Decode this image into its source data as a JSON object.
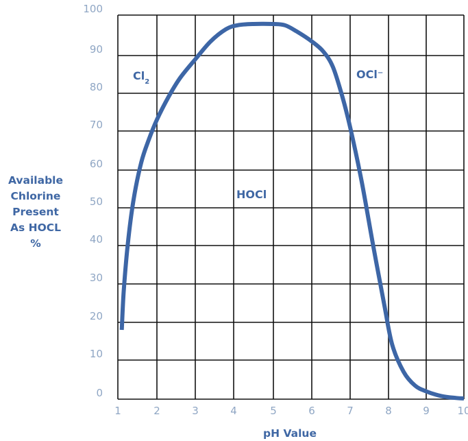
{
  "chart_data": {
    "type": "line",
    "title": "",
    "xlabel": "pH Value",
    "ylabel_lines": [
      "Available",
      "Chlorine",
      "Present",
      "As HOCL",
      "%"
    ],
    "xlim": [
      1,
      10
    ],
    "ylim": [
      0,
      100
    ],
    "x_ticks": [
      "1",
      "2",
      "3",
      "4",
      "5",
      "6",
      "7",
      "8",
      "9",
      "10"
    ],
    "y_ticks": [
      "0",
      "10",
      "20",
      "30",
      "40",
      "50",
      "60",
      "70",
      "80",
      "90",
      "100"
    ],
    "grid": true,
    "series": [
      {
        "color": "#3d66a6",
        "points": [
          [
            1.1,
            18
          ],
          [
            1.15,
            28
          ],
          [
            1.25,
            40
          ],
          [
            1.4,
            52
          ],
          [
            1.6,
            62
          ],
          [
            1.8,
            68
          ],
          [
            2.0,
            73
          ],
          [
            2.3,
            79
          ],
          [
            2.6,
            84
          ],
          [
            3.0,
            89
          ],
          [
            3.4,
            93.5
          ],
          [
            3.8,
            96.5
          ],
          [
            4.1,
            97.5
          ],
          [
            4.5,
            97.8
          ],
          [
            5.0,
            97.8
          ],
          [
            5.3,
            97.5
          ],
          [
            5.6,
            96
          ],
          [
            6.0,
            93.5
          ],
          [
            6.3,
            91
          ],
          [
            6.55,
            87
          ],
          [
            6.8,
            79
          ],
          [
            7.0,
            71
          ],
          [
            7.3,
            57
          ],
          [
            7.6,
            40
          ],
          [
            7.9,
            24
          ],
          [
            8.1,
            14
          ],
          [
            8.4,
            7
          ],
          [
            8.7,
            3.5
          ],
          [
            9.0,
            2
          ],
          [
            9.4,
            0.8
          ],
          [
            9.8,
            0.3
          ],
          [
            10.0,
            0.2
          ]
        ]
      }
    ],
    "annotations": [
      {
        "id": "cl2",
        "main": "Cl",
        "sub": "2",
        "x": 1.45,
        "y": 84
      },
      {
        "id": "hocl",
        "main": "HOCl",
        "x": 4.0,
        "y": 52
      },
      {
        "id": "ocl",
        "main": "OCl⁻",
        "x": 6.2,
        "y": 84
      }
    ],
    "colors": {
      "curve": "#3d66a6",
      "grid": "#111111",
      "tick_labels": "#8fa6c4",
      "titles": "#3f67a4"
    }
  }
}
